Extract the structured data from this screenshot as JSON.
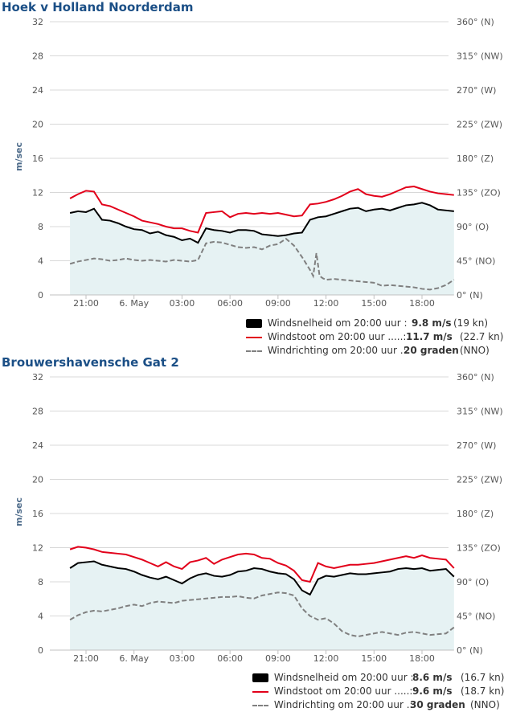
{
  "colors": {
    "title": "#1b4f86",
    "speed": "#000000",
    "gust": "#e2001a",
    "direction": "#808080",
    "fill": "#e6f2f3",
    "grid": "#d8d8d8"
  },
  "chart_data": [
    {
      "type": "line",
      "title": "Hoek v Holland Noorderdam",
      "ylabel": "m/sec",
      "ylim": [
        0,
        32
      ],
      "yticks": [
        "0",
        "4",
        "8",
        "12",
        "16",
        "20",
        "24",
        "28",
        "32"
      ],
      "y2ticks": [
        "0° (N)",
        "45° (NO)",
        "90° (O)",
        "135° (ZO)",
        "180° (Z)",
        "225° (ZW)",
        "270° (W)",
        "315° (NW)",
        "360° (N)"
      ],
      "y2lim": [
        0,
        360
      ],
      "xticks": [
        "21:00",
        "6. May",
        "03:00",
        "06:00",
        "09:00",
        "12:00",
        "15:00",
        "18:00"
      ],
      "xlim_hours": [
        -4,
        20
      ],
      "grid": true,
      "series": [
        {
          "name": "Windsnelheid",
          "axis": "left",
          "x": [
            -4,
            -3.5,
            -3,
            -2.5,
            -2,
            -1.5,
            -1,
            -0.5,
            0,
            0.5,
            1,
            1.5,
            2,
            2.5,
            3,
            3.5,
            4,
            4.5,
            5,
            5.5,
            6,
            6.5,
            7,
            7.5,
            8,
            8.5,
            9,
            9.5,
            10,
            10.5,
            11,
            11.5,
            12,
            12.5,
            13,
            13.5,
            14,
            14.5,
            15,
            15.5,
            16,
            16.5,
            17,
            17.5,
            18,
            18.5,
            19,
            19.5,
            20
          ],
          "values": [
            9.6,
            9.8,
            9.7,
            10.1,
            8.8,
            8.7,
            8.4,
            8.0,
            7.7,
            7.6,
            7.2,
            7.4,
            7.0,
            6.8,
            6.4,
            6.6,
            6.1,
            7.8,
            7.6,
            7.5,
            7.3,
            7.6,
            7.6,
            7.5,
            7.1,
            7.0,
            6.9,
            7.0,
            7.2,
            7.3,
            8.8,
            9.1,
            9.2,
            9.5,
            9.8,
            10.1,
            10.2,
            9.8,
            10.0,
            10.1,
            9.9,
            10.2,
            10.5,
            10.6,
            10.8,
            10.5,
            10.0,
            9.9,
            9.8
          ]
        },
        {
          "name": "Windstoot",
          "axis": "left",
          "x": [
            -4,
            -3.5,
            -3,
            -2.5,
            -2,
            -1.5,
            -1,
            -0.5,
            0,
            0.5,
            1,
            1.5,
            2,
            2.5,
            3,
            3.5,
            4,
            4.5,
            5,
            5.5,
            6,
            6.5,
            7,
            7.5,
            8,
            8.5,
            9,
            9.5,
            10,
            10.5,
            11,
            11.5,
            12,
            12.5,
            13,
            13.5,
            14,
            14.5,
            15,
            15.5,
            16,
            16.5,
            17,
            17.5,
            18,
            18.5,
            19,
            19.5,
            20
          ],
          "values": [
            11.3,
            11.8,
            12.2,
            12.1,
            10.6,
            10.4,
            10.0,
            9.6,
            9.2,
            8.7,
            8.5,
            8.3,
            8.0,
            7.8,
            7.8,
            7.5,
            7.3,
            9.6,
            9.7,
            9.8,
            9.1,
            9.5,
            9.6,
            9.5,
            9.6,
            9.5,
            9.6,
            9.4,
            9.2,
            9.3,
            10.6,
            10.7,
            10.9,
            11.2,
            11.6,
            12.1,
            12.4,
            11.8,
            11.6,
            11.5,
            11.8,
            12.2,
            12.6,
            12.7,
            12.4,
            12.1,
            11.9,
            11.8,
            11.7
          ]
        },
        {
          "name": "Windrichting",
          "axis": "right",
          "x": [
            -4,
            -3.5,
            -3,
            -2.5,
            -2,
            -1.5,
            -1,
            -0.5,
            0,
            0.5,
            1,
            1.5,
            2,
            2.5,
            3,
            3.5,
            4,
            4.5,
            5,
            5.5,
            6,
            6.5,
            7,
            7.5,
            8,
            8.5,
            9,
            9.5,
            10,
            10.5,
            11,
            11.2,
            11.4,
            11.6,
            11.8,
            12,
            12.5,
            13,
            13.5,
            14,
            14.5,
            15,
            15.5,
            16,
            16.5,
            17,
            17.5,
            18,
            18.5,
            19,
            19.5,
            20
          ],
          "values": [
            41,
            44,
            46,
            48,
            47,
            45,
            46,
            48,
            46,
            45,
            46,
            45,
            44,
            46,
            45,
            44,
            46,
            68,
            70,
            69,
            66,
            63,
            62,
            63,
            60,
            65,
            67,
            74,
            65,
            50,
            33,
            25,
            55,
            25,
            22,
            20,
            21,
            20,
            19,
            18,
            17,
            16,
            12,
            13,
            12,
            11,
            10,
            8,
            7,
            9,
            13,
            20
          ]
        }
      ],
      "legend": [
        {
          "label": "Windsnelheid om 20:00 uur :",
          "value": "9.8 m/s",
          "extra": "(19 kn)"
        },
        {
          "label": "Windstoot om 20:00 uur .....:",
          "value": "11.7 m/s",
          "extra": "(22.7 kn)"
        },
        {
          "label": "Windrichting om 20:00 uur .:",
          "value": "20 graden",
          "extra": "(NNO)"
        }
      ]
    },
    {
      "type": "line",
      "title": "Brouwershavensche Gat 2",
      "ylabel": "m/sec",
      "ylim": [
        0,
        32
      ],
      "yticks": [
        "0",
        "4",
        "8",
        "12",
        "16",
        "20",
        "24",
        "28",
        "32"
      ],
      "y2ticks": [
        "0° (N)",
        "45° (NO)",
        "90° (O)",
        "135° (ZO)",
        "180° (Z)",
        "225° (ZW)",
        "270° (W)",
        "315° (NW)",
        "360° (N)"
      ],
      "y2lim": [
        0,
        360
      ],
      "xticks": [
        "21:00",
        "6. May",
        "03:00",
        "06:00",
        "09:00",
        "12:00",
        "15:00",
        "18:00"
      ],
      "xlim_hours": [
        -4,
        20
      ],
      "grid": true,
      "series": [
        {
          "name": "Windsnelheid",
          "axis": "left",
          "x": [
            -4,
            -3.5,
            -3,
            -2.5,
            -2,
            -1.5,
            -1,
            -0.5,
            0,
            0.5,
            1,
            1.5,
            2,
            2.5,
            3,
            3.5,
            4,
            4.5,
            5,
            5.5,
            6,
            6.5,
            7,
            7.5,
            8,
            8.5,
            9,
            9.5,
            10,
            10.5,
            11,
            11.5,
            12,
            12.5,
            13,
            13.5,
            14,
            14.5,
            15,
            15.5,
            16,
            16.5,
            17,
            17.5,
            18,
            18.5,
            19,
            19.5,
            20
          ],
          "values": [
            9.6,
            10.2,
            10.3,
            10.4,
            10.0,
            9.8,
            9.6,
            9.5,
            9.2,
            8.8,
            8.5,
            8.3,
            8.6,
            8.2,
            7.8,
            8.4,
            8.8,
            9.0,
            8.7,
            8.6,
            8.8,
            9.2,
            9.3,
            9.6,
            9.5,
            9.2,
            9.0,
            8.9,
            8.3,
            7.0,
            6.5,
            8.3,
            8.7,
            8.6,
            8.8,
            9.0,
            8.9,
            8.9,
            9.0,
            9.1,
            9.2,
            9.5,
            9.6,
            9.5,
            9.6,
            9.3,
            9.4,
            9.5,
            8.6
          ]
        },
        {
          "name": "Windstoot",
          "axis": "left",
          "x": [
            -4,
            -3.5,
            -3,
            -2.5,
            -2,
            -1.5,
            -1,
            -0.5,
            0,
            0.5,
            1,
            1.5,
            2,
            2.5,
            3,
            3.5,
            4,
            4.5,
            5,
            5.5,
            6,
            6.5,
            7,
            7.5,
            8,
            8.5,
            9,
            9.5,
            10,
            10.5,
            11,
            11.5,
            12,
            12.5,
            13,
            13.5,
            14,
            14.5,
            15,
            15.5,
            16,
            16.5,
            17,
            17.5,
            18,
            18.5,
            19,
            19.5,
            20
          ],
          "values": [
            11.8,
            12.1,
            12.0,
            11.8,
            11.5,
            11.4,
            11.3,
            11.2,
            10.9,
            10.6,
            10.2,
            9.8,
            10.3,
            9.8,
            9.5,
            10.3,
            10.5,
            10.8,
            10.1,
            10.6,
            10.9,
            11.2,
            11.3,
            11.2,
            10.8,
            10.7,
            10.2,
            9.9,
            9.3,
            8.2,
            8.0,
            10.2,
            9.8,
            9.6,
            9.8,
            10.0,
            10.0,
            10.1,
            10.2,
            10.4,
            10.6,
            10.8,
            11.0,
            10.8,
            11.1,
            10.8,
            10.7,
            10.6,
            9.6
          ]
        },
        {
          "name": "Windrichting",
          "axis": "right",
          "x": [
            -4,
            -3.5,
            -3,
            -2.5,
            -2,
            -1.5,
            -1,
            -0.5,
            0,
            0.5,
            1,
            1.5,
            2,
            2.5,
            3,
            3.5,
            4,
            4.5,
            5,
            5.5,
            6,
            6.5,
            7,
            7.5,
            8,
            8.5,
            9,
            9.5,
            10,
            10.5,
            11,
            11.5,
            12,
            12.5,
            13,
            13.5,
            14,
            14.5,
            15,
            15.5,
            16,
            16.5,
            17,
            17.5,
            18,
            18.5,
            19,
            19.5,
            20
          ],
          "values": [
            40,
            46,
            50,
            52,
            51,
            53,
            55,
            58,
            60,
            58,
            62,
            64,
            63,
            62,
            65,
            66,
            67,
            68,
            69,
            70,
            70,
            71,
            69,
            68,
            72,
            74,
            76,
            75,
            72,
            55,
            45,
            40,
            42,
            35,
            25,
            20,
            18,
            20,
            22,
            24,
            22,
            20,
            23,
            24,
            22,
            20,
            21,
            22,
            30
          ]
        }
      ],
      "legend": [
        {
          "label": "Windsnelheid om 20:00 uur :",
          "value": "8.6 m/s",
          "extra": "(16.7 kn)"
        },
        {
          "label": "Windstoot om 20:00 uur .....:",
          "value": "9.6 m/s",
          "extra": "(18.7 kn)"
        },
        {
          "label": "Windrichting om 20:00 uur .:",
          "value": "30 graden",
          "extra": "(NNO)"
        }
      ]
    }
  ]
}
